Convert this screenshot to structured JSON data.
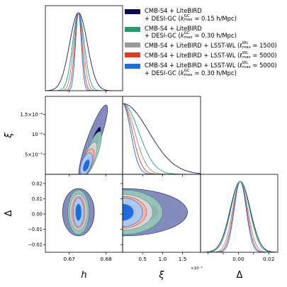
{
  "chart_data": {
    "type": "corner-contour",
    "parameters": [
      {
        "key": "h",
        "label": "h",
        "range": [
          0.6635,
          0.6845
        ],
        "ticks": [
          0.67,
          0.68
        ],
        "tick_labels": [
          "0.67",
          "0.68"
        ]
      },
      {
        "key": "xi",
        "label": "ξ",
        "range": [
          0,
          0.000195
        ],
        "ticks": [
          5e-05,
          0.0001,
          0.00015
        ],
        "tick_labels_y": [
          "5×10⁻⁵",
          "10⁻⁴",
          "1.5×10⁻⁴"
        ],
        "tick_labels_x": [
          "0.5",
          "1.0",
          "1.5"
        ],
        "x_scale_label": "×10⁻⁴"
      },
      {
        "key": "Delta",
        "label": "Δ",
        "range": [
          -0.025,
          0.026
        ],
        "ticks": [
          -0.02,
          -0.01,
          0.0,
          0.01,
          0.02
        ],
        "tick_labels": [
          "−0.02",
          "−0.01",
          "0.00",
          "0.01",
          "0.02"
        ],
        "tick_labels_x": [
          "0.00",
          "0.02"
        ]
      }
    ],
    "series": [
      {
        "legend_lines": [
          "CMB-S4 + LiteBIRD",
          "+ DESI-GC (k_max^GC = 0.15 h/Mpc)"
        ],
        "color": "#1b1b5e",
        "fill": "#7a82b8",
        "fill2": "#0a0a50",
        "h_mean": 0.6725,
        "h_sigma": 0.0024,
        "xi_scale": 6.5e-05,
        "delta_mean": 0.0012,
        "delta_sigma": 0.0066,
        "ellipse_h_halfwidth": 0.0043,
        "ellipse_delta_halfheight": 0.0155,
        "ellipse_xi_max": 0.000172
      },
      {
        "legend_lines": [
          "CMB-S4 + LiteBIRD",
          "+ DESI-GC (k_max^GC = 0.30 h/Mpc)"
        ],
        "color": "#1f9e6a",
        "fill": "#98c8b8",
        "fill2": "#1f9e6a",
        "h_mean": 0.6725,
        "h_sigma": 0.0016,
        "xi_scale": 4e-05,
        "delta_mean": 0.0012,
        "delta_sigma": 0.0062
      },
      {
        "legend_lines": [
          "CMB-S4 + LiteBIRD + LSST-WL (ℓ_max^WL = 1500)"
        ],
        "color": "#8a8a8a",
        "fill": "#d9d9d9",
        "fill2": "#9a9a9a",
        "h_mean": 0.6725,
        "h_sigma": 0.0013,
        "xi_scale": 3e-05,
        "delta_mean": 0.0012,
        "delta_sigma": 0.005
      },
      {
        "legend_lines": [
          "CMB-S4 + LiteBIRD + LSST-WL (ℓ_max^WL = 5000)"
        ],
        "color": "#e03a22",
        "fill": "#f2b4a6",
        "fill2": "#e03a22",
        "h_mean": 0.6725,
        "h_sigma": 0.001,
        "xi_scale": 2.4e-05,
        "delta_mean": 0.0012,
        "delta_sigma": 0.0044
      },
      {
        "legend_lines": [
          "CMB-S4 + LiteBIRD + LSST-WL (ℓ_max^WL = 5000)",
          "+ DESI-GC (k_max^GC = 0.30 h/Mpc)"
        ],
        "color": "#1a6fe0",
        "fill": "#a9c9f2",
        "fill2": "#1a6fe0",
        "h_mean": 0.6725,
        "h_sigma": 0.0008,
        "xi_scale": 2e-05,
        "delta_mean": 0.0012,
        "delta_sigma": 0.004
      }
    ]
  }
}
